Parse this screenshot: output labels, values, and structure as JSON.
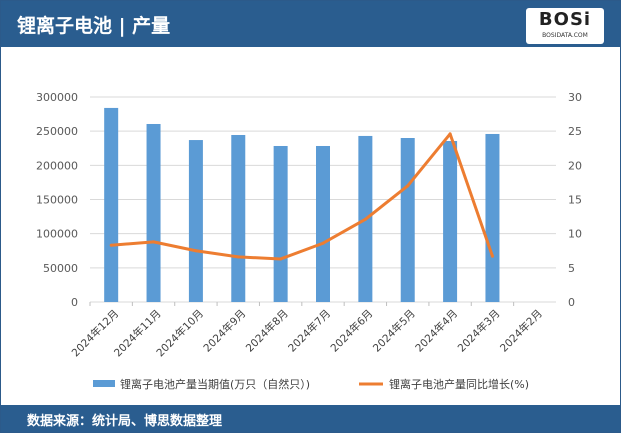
{
  "header": {
    "title": "锂离子电池 | 产量",
    "logo": "BOSi",
    "logo_sub": "BOSIDATA.COM"
  },
  "footer": {
    "source": "数据来源：统计局、博思数据整理"
  },
  "colors": {
    "bar": "#5b9bd5",
    "line": "#ed7d31",
    "header": "#2a5d8f"
  },
  "chart_data": {
    "type": "bar+line",
    "categories": [
      "2024年12月",
      "2024年11月",
      "2024年10月",
      "2024年9月",
      "2024年8月",
      "2024年7月",
      "2024年6月",
      "2024年5月",
      "2024年4月",
      "2024年3月",
      "2024年2月"
    ],
    "series": [
      {
        "name": "锂离子电池产量当期值(万只（自然只）)",
        "type": "bar",
        "axis": "left",
        "values": [
          284000,
          260500,
          237000,
          244400,
          228300,
          228300,
          243000,
          240000,
          235600,
          245900,
          null
        ]
      },
      {
        "name": "锂离子电池产量同比增长(%)",
        "type": "line",
        "axis": "right",
        "values": [
          8.3,
          8.8,
          7.5,
          6.6,
          6.3,
          8.6,
          12.1,
          17.0,
          24.6,
          6.7,
          null
        ]
      }
    ],
    "y_left": {
      "range": [
        0,
        300000
      ],
      "ticks": [
        "0",
        "50000",
        "100000",
        "150000",
        "200000",
        "250000",
        "300000"
      ]
    },
    "y_right": {
      "range": [
        0,
        30
      ],
      "ticks": [
        "0",
        "5",
        "10",
        "15",
        "20",
        "25",
        "30"
      ]
    },
    "grid": true,
    "legend": "bottom"
  }
}
